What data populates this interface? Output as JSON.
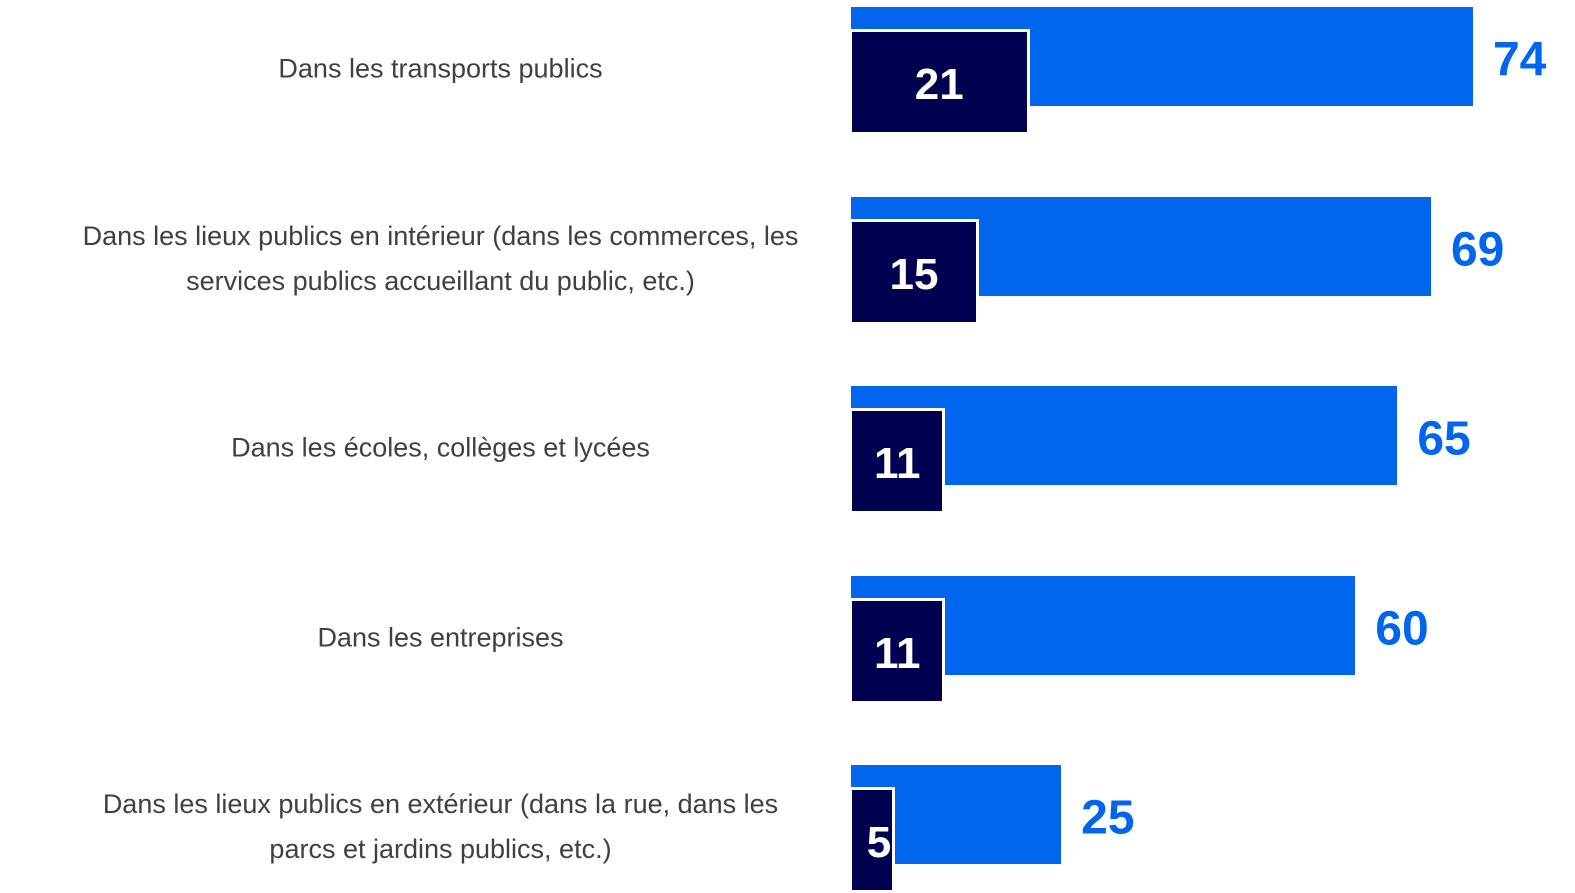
{
  "chart_data": {
    "type": "bar",
    "orientation": "horizontal",
    "categories": [
      "Dans les transports publics",
      "Dans les lieux publics en intérieur (dans les commerces, les services publics accueillant du public, etc.)",
      "Dans les écoles, collèges et lycées",
      "Dans les entreprises",
      "Dans les lieux publics en extérieur (dans la rue, dans les parcs et jardins publics, etc.)"
    ],
    "series": [
      {
        "color": "#0066ee",
        "values": [
          74,
          69,
          65,
          60,
          25
        ]
      },
      {
        "color": "#000050",
        "values": [
          21,
          15,
          11,
          11,
          5
        ]
      }
    ]
  }
}
